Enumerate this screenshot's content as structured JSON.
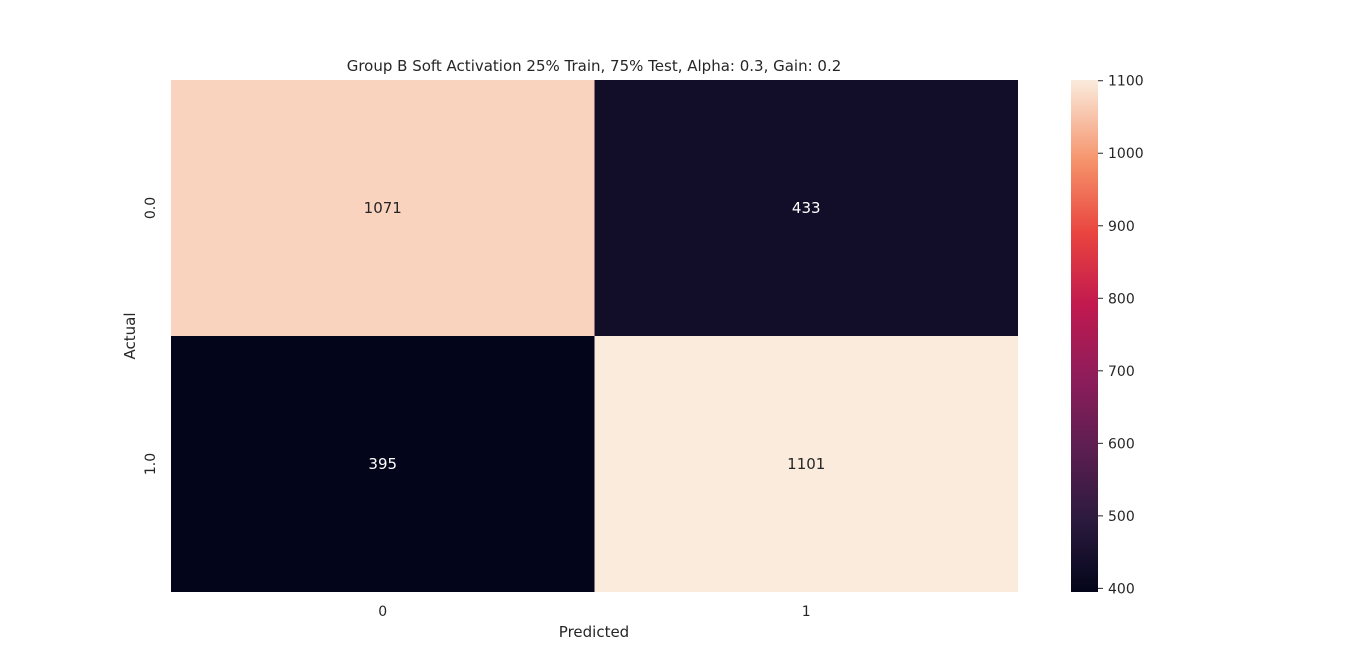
{
  "chart_data": {
    "type": "heatmap",
    "title": "Group B Soft Activation 25% Train, 75% Test, Alpha: 0.3, Gain: 0.2",
    "xlabel": "Predicted",
    "ylabel": "Actual",
    "x_categories": [
      "0",
      "1"
    ],
    "y_categories": [
      "0.0",
      "1.0"
    ],
    "values": [
      [
        1071,
        433
      ],
      [
        395,
        1101
      ]
    ],
    "colorbar": {
      "vmin": 395,
      "vmax": 1101,
      "ticks": [
        400,
        500,
        600,
        700,
        800,
        900,
        1000,
        1100
      ],
      "colormap": "rocket"
    }
  }
}
